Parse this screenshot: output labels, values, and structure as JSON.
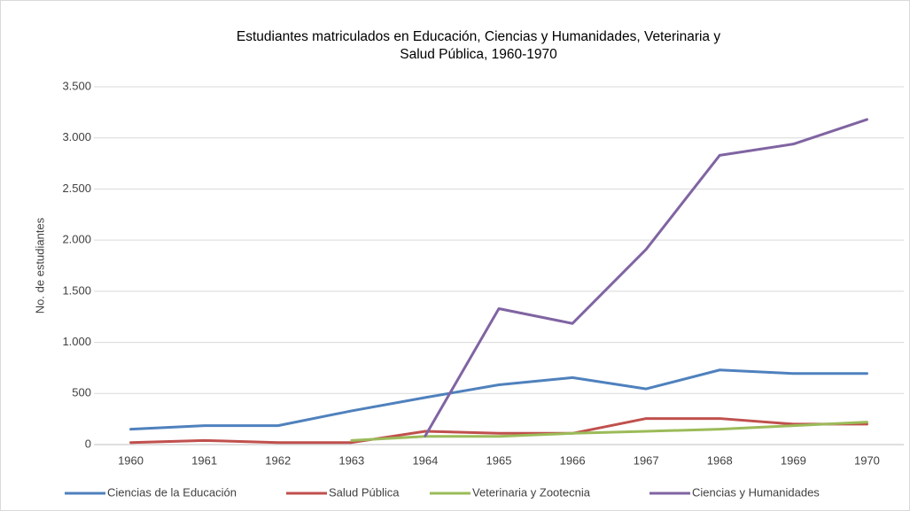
{
  "chart_data": {
    "type": "line",
    "title": [
      "Estudiantes matriculados en Educación, Ciencias y Humanidades, Veterinaria y",
      "Salud Pública, 1960-1970"
    ],
    "y_label": "No. de estudiantes",
    "categories": [
      "1960",
      "1961",
      "1962",
      "1963",
      "1964",
      "1965",
      "1966",
      "1967",
      "1968",
      "1969",
      "1970"
    ],
    "series": [
      {
        "name": "Ciencias de la Educación",
        "color": "#4f81bd",
        "values": [
          150,
          185,
          185,
          330,
          460,
          585,
          655,
          545,
          730,
          695,
          695
        ]
      },
      {
        "name": "Salud Pública",
        "color": "#c0504d",
        "values": [
          20,
          40,
          20,
          20,
          130,
          110,
          110,
          255,
          255,
          200,
          200
        ]
      },
      {
        "name": "Veterinaria y Zootecnia",
        "color": "#9bbb59",
        "values": [
          null,
          null,
          null,
          40,
          80,
          80,
          110,
          130,
          150,
          185,
          220
        ]
      },
      {
        "name": "Ciencias y Humanidades",
        "color": "#8064a2",
        "values": [
          null,
          null,
          null,
          null,
          85,
          1330,
          1185,
          1910,
          2830,
          2940,
          3180
        ]
      }
    ],
    "ylim": [
      0,
      3500
    ],
    "yticks": [
      0,
      500,
      {
        "value": 1000,
        "label": "1.000"
      },
      {
        "value": 1500,
        "label": "1.500"
      },
      {
        "value": 2000,
        "label": "2.000"
      },
      {
        "value": 2500,
        "label": "2.500"
      },
      {
        "value": 3000,
        "label": "3.000"
      },
      {
        "value": 3500,
        "label": "3.500"
      }
    ],
    "grid": true,
    "legend": "bottom"
  }
}
